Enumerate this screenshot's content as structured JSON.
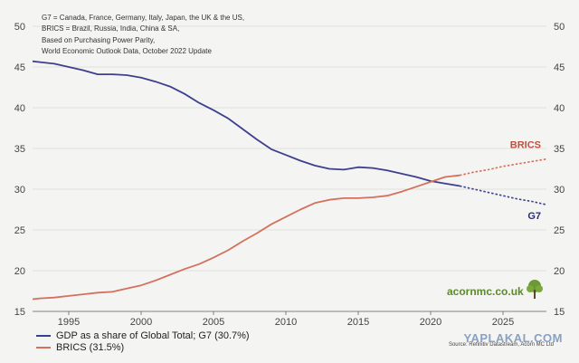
{
  "notes": [
    "G7 = Canada, France, Germany, Italy, Japan, the UK & the US,",
    "BRICS = Brazil, Russia, India, China & SA,",
    "Based on Purchasing Power Parity,",
    "World Economic Outlook Data, October 2022 Update"
  ],
  "legend": [
    {
      "label": "GDP as a share of Global Total; G7 (30.7%)",
      "color": "#3d3f8f"
    },
    {
      "label": "BRICS (31.5%)",
      "color": "#d4705e"
    }
  ],
  "source": "Source: Refinitiv Datastream, Acorn MC Ltd",
  "brand": "acornmc.co.uk",
  "watermark": "YAPLAKAL.COM",
  "chart_data": {
    "type": "line",
    "ylim": [
      15,
      50
    ],
    "xlim": [
      1992.5,
      2028
    ],
    "yticks": [
      15,
      20,
      25,
      30,
      35,
      40,
      45,
      50
    ],
    "xticks": [
      1995,
      2000,
      2005,
      2010,
      2015,
      2020,
      2025
    ],
    "grid": true,
    "legend_position": "bottom-left",
    "forecast_start": 2022,
    "series": [
      {
        "name": "GDP as a share of Global Total; G7 (30.7%)",
        "label": "G7",
        "color": "#3d3f8f",
        "x": [
          1992.5,
          1993,
          1994,
          1995,
          1996,
          1997,
          1998,
          1999,
          2000,
          2001,
          2002,
          2003,
          2004,
          2005,
          2006,
          2007,
          2008,
          2009,
          2010,
          2011,
          2012,
          2013,
          2014,
          2015,
          2016,
          2017,
          2018,
          2019,
          2020,
          2021,
          2022,
          2023,
          2024,
          2025,
          2026,
          2027,
          2028
        ],
        "values": [
          45.7,
          45.6,
          45.4,
          45.0,
          44.6,
          44.1,
          44.1,
          44.0,
          43.7,
          43.2,
          42.6,
          41.7,
          40.6,
          39.7,
          38.7,
          37.4,
          36.1,
          34.9,
          34.2,
          33.5,
          32.9,
          32.5,
          32.4,
          32.7,
          32.6,
          32.3,
          31.9,
          31.5,
          31.0,
          30.7,
          30.4,
          30.0,
          29.6,
          29.2,
          28.8,
          28.5,
          28.1
        ]
      },
      {
        "name": "BRICS (31.5%)",
        "label": "BRICS",
        "color": "#d4705e",
        "x": [
          1992.5,
          1993,
          1994,
          1995,
          1996,
          1997,
          1998,
          1999,
          2000,
          2001,
          2002,
          2003,
          2004,
          2005,
          2006,
          2007,
          2008,
          2009,
          2010,
          2011,
          2012,
          2013,
          2014,
          2015,
          2016,
          2017,
          2018,
          2019,
          2020,
          2021,
          2022,
          2023,
          2024,
          2025,
          2026,
          2027,
          2028
        ],
        "values": [
          16.5,
          16.6,
          16.7,
          16.9,
          17.1,
          17.3,
          17.4,
          17.8,
          18.2,
          18.8,
          19.5,
          20.2,
          20.8,
          21.6,
          22.5,
          23.6,
          24.6,
          25.7,
          26.6,
          27.5,
          28.3,
          28.7,
          28.9,
          28.9,
          29.0,
          29.2,
          29.7,
          30.3,
          30.9,
          31.5,
          31.7,
          32.1,
          32.4,
          32.8,
          33.1,
          33.4,
          33.7
        ]
      }
    ]
  }
}
